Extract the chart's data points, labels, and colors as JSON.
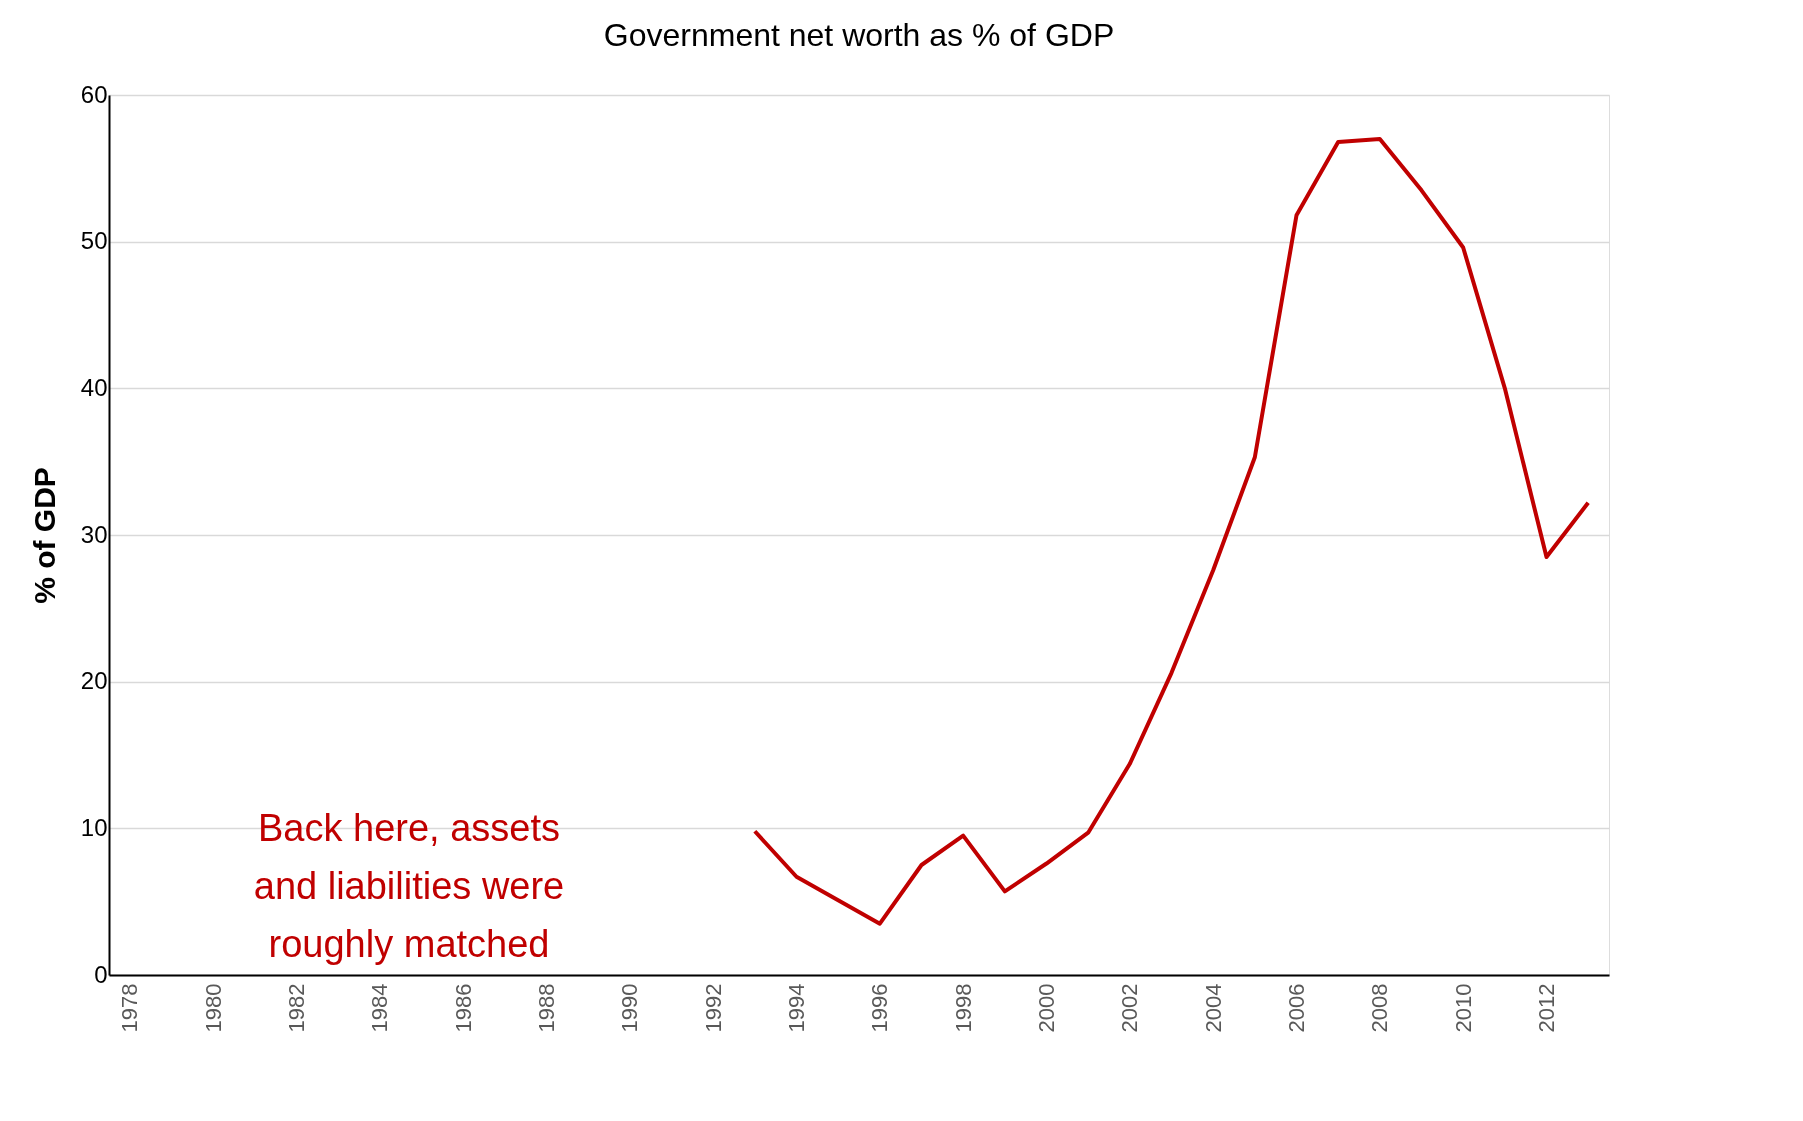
{
  "chart_data": {
    "type": "line",
    "title": "Government net worth as % of GDP",
    "ylabel": "% of GDP",
    "categories": [
      "1978",
      null,
      "1980",
      null,
      "1982",
      null,
      "1984",
      null,
      "1986",
      null,
      "1988",
      null,
      "1990",
      null,
      "1992",
      null,
      "1994",
      null,
      "1996",
      null,
      "1998",
      null,
      "2000",
      null,
      "2002",
      null,
      "2004",
      null,
      "2006",
      null,
      "2008",
      null,
      "2010",
      null,
      "2012",
      null
    ],
    "series": [
      {
        "color": "#c00000",
        "values": [
          null,
          null,
          null,
          null,
          null,
          null,
          null,
          null,
          null,
          null,
          null,
          null,
          null,
          null,
          null,
          9.8,
          6.7,
          5.1,
          3.5,
          7.5,
          9.5,
          5.7,
          7.6,
          9.7,
          14.4,
          20.6,
          27.6,
          35.3,
          51.8,
          56.8,
          57.0,
          53.5,
          49.6,
          40.0,
          28.5,
          32.2
        ]
      }
    ],
    "ylim": [
      0,
      60
    ],
    "yticks": [
      0,
      10,
      20,
      30,
      40,
      50,
      60
    ],
    "grid": "y",
    "marker": "none",
    "line_style": "solid",
    "annotations": [
      "Back here, assets and liabilities were roughly matched"
    ]
  }
}
